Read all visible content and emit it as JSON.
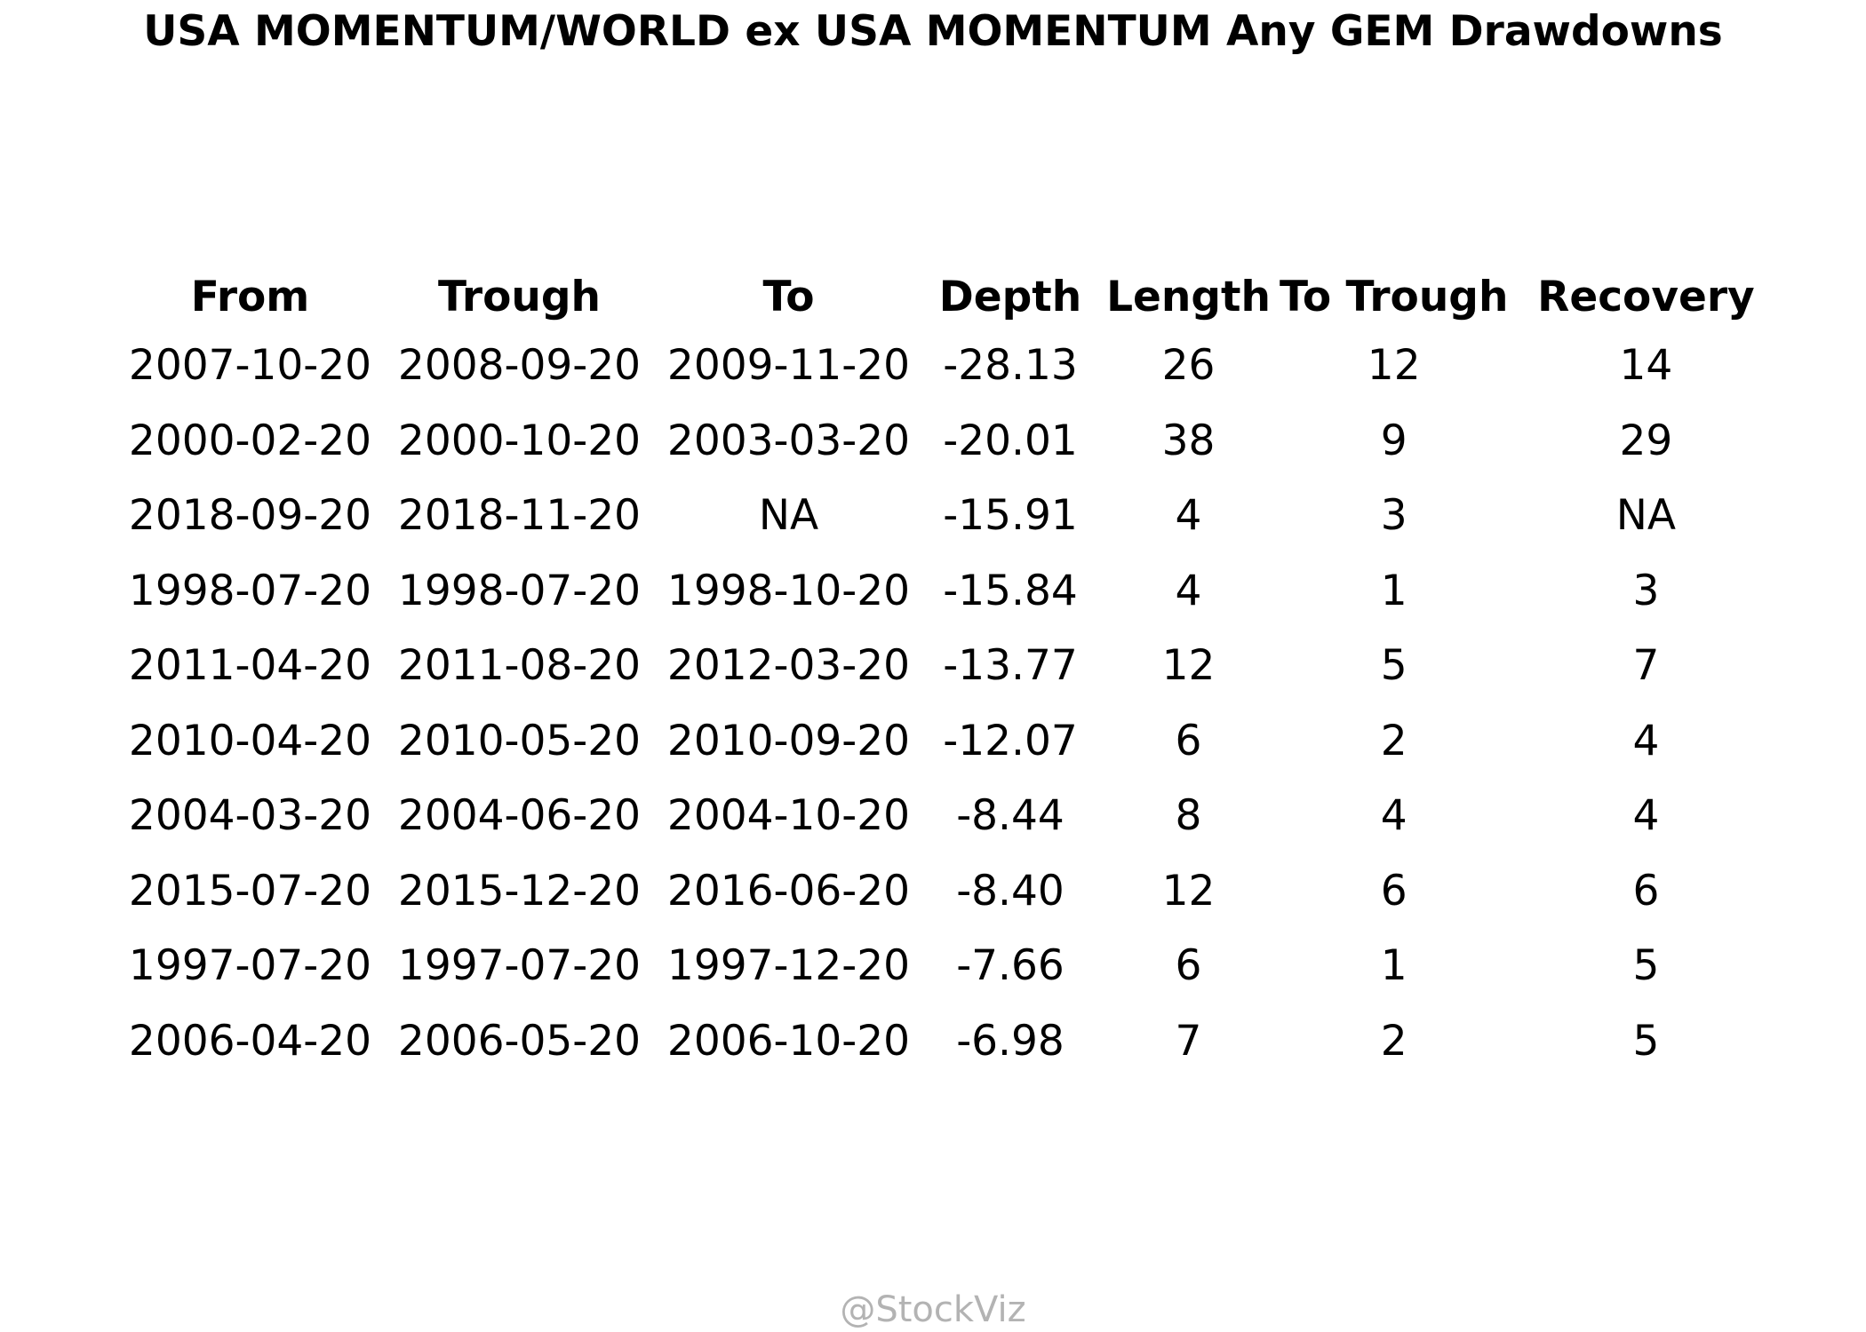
{
  "chart_data": {
    "type": "table",
    "title": "USA MOMENTUM/WORLD ex USA MOMENTUM Any GEM Drawdowns",
    "columns": [
      "From",
      "Trough",
      "To",
      "Depth",
      "Length",
      "To Trough",
      "Recovery"
    ],
    "rows": [
      [
        "2007-10-20",
        "2008-09-20",
        "2009-11-20",
        "-28.13",
        "26",
        "12",
        "14"
      ],
      [
        "2000-02-20",
        "2000-10-20",
        "2003-03-20",
        "-20.01",
        "38",
        "9",
        "29"
      ],
      [
        "2018-09-20",
        "2018-11-20",
        "NA",
        "-15.91",
        "4",
        "3",
        "NA"
      ],
      [
        "1998-07-20",
        "1998-07-20",
        "1998-10-20",
        "-15.84",
        "4",
        "1",
        "3"
      ],
      [
        "2011-04-20",
        "2011-08-20",
        "2012-03-20",
        "-13.77",
        "12",
        "5",
        "7"
      ],
      [
        "2010-04-20",
        "2010-05-20",
        "2010-09-20",
        "-12.07",
        "6",
        "2",
        "4"
      ],
      [
        "2004-03-20",
        "2004-06-20",
        "2004-10-20",
        "-8.44",
        "8",
        "4",
        "4"
      ],
      [
        "2015-07-20",
        "2015-12-20",
        "2016-06-20",
        "-8.40",
        "12",
        "6",
        "6"
      ],
      [
        "1997-07-20",
        "1997-07-20",
        "1997-12-20",
        "-7.66",
        "6",
        "1",
        "5"
      ],
      [
        "2006-04-20",
        "2006-05-20",
        "2006-10-20",
        "-6.98",
        "7",
        "2",
        "5"
      ]
    ]
  },
  "watermark": "@StockViz",
  "colors": {
    "text": "#000000",
    "watermark": "#b3b3b3",
    "background": "#ffffff"
  }
}
